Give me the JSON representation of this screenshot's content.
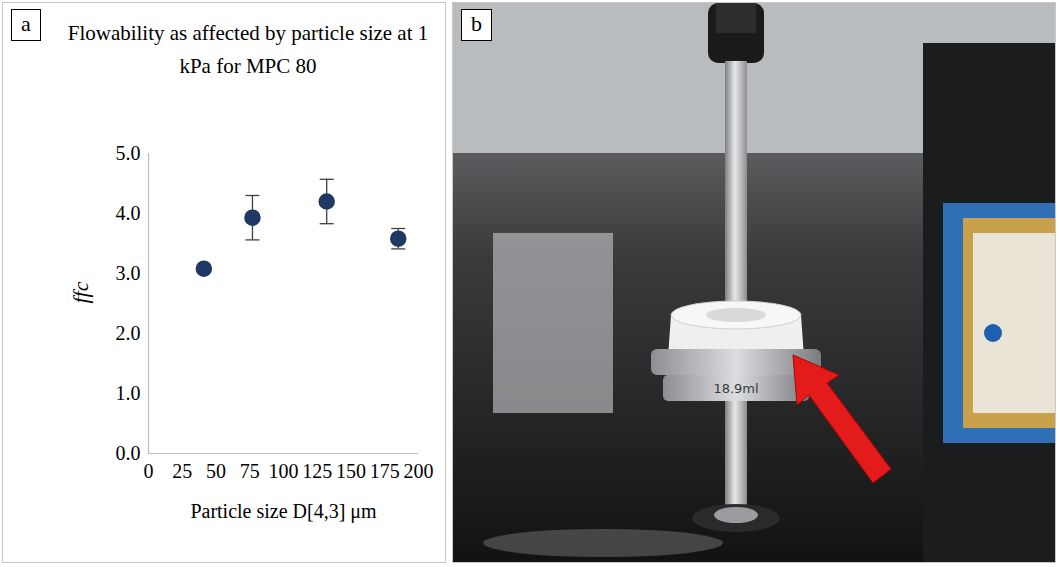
{
  "chart_data": {
    "type": "scatter",
    "title": "Flowability as affected by particle size at 1 kPa for MPC 80",
    "x_label": "Particle size D[4,3] μm",
    "y_label": "ffc",
    "x": [
      41,
      77,
      132,
      185
    ],
    "values": [
      3.08,
      3.93,
      4.2,
      3.58
    ],
    "error": [
      0.05,
      0.37,
      0.37,
      0.17
    ],
    "color": "#1f3864",
    "marker": "circle",
    "xlim": [
      0,
      200
    ],
    "xticks": [
      0,
      25,
      50,
      75,
      100,
      125,
      150,
      175,
      200
    ],
    "ylim": [
      0,
      5
    ],
    "yticks": [
      {
        "value": 0,
        "label": "0.0"
      },
      {
        "value": 1,
        "label": "1.0"
      },
      {
        "value": 2,
        "label": "2.0"
      },
      {
        "value": 3,
        "label": "3.0"
      },
      {
        "value": 4,
        "label": "4.0"
      },
      {
        "value": 5,
        "label": "5.0"
      }
    ],
    "grid": false
  },
  "panel_labels": [
    "a",
    "b"
  ],
  "photo": {
    "cup_label": "18.9ml"
  }
}
